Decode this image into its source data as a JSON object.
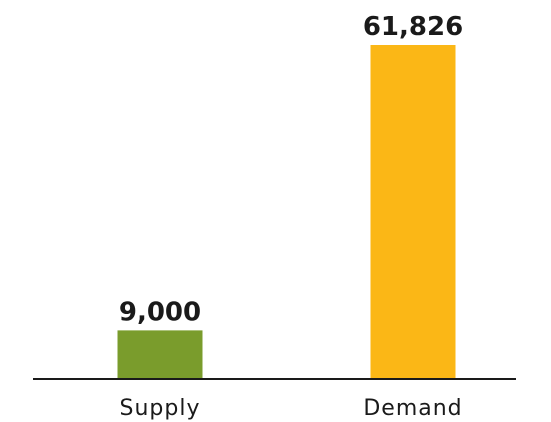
{
  "chart_data": {
    "type": "bar",
    "title": "",
    "xlabel": "",
    "ylabel": "",
    "categories": [
      "Supply",
      "Demand"
    ],
    "values": [
      9000,
      61826
    ],
    "value_labels": [
      "9,000",
      "61,826"
    ],
    "colors": [
      "#7a9c2c",
      "#fbb716"
    ],
    "axis_color": "#1a1a1a",
    "ylim": [
      0,
      61826
    ],
    "grid": false,
    "legend": "none"
  }
}
